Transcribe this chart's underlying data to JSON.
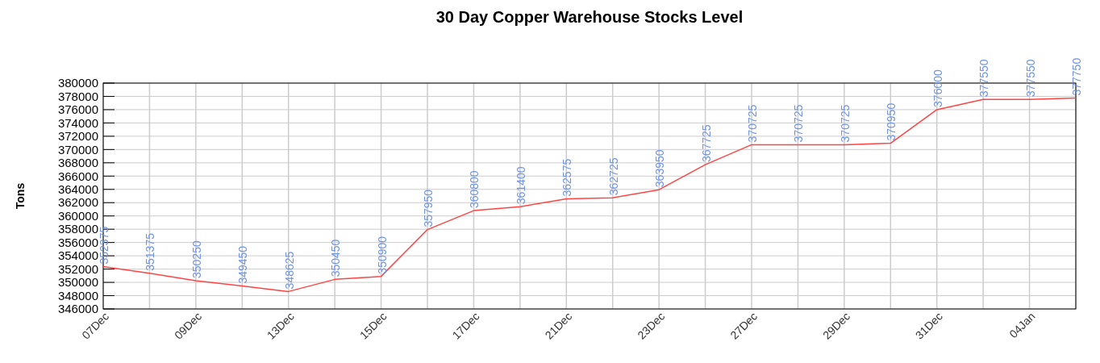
{
  "chart_data": {
    "type": "line",
    "title": "30 Day Copper Warehouse Stocks Level",
    "ylabel": "Tons",
    "categories": [
      "07Dec",
      null,
      "09Dec",
      null,
      "13Dec",
      null,
      "15Dec",
      null,
      "17Dec",
      null,
      "21Dec",
      null,
      "23Dec",
      null,
      "27Dec",
      null,
      "29Dec",
      null,
      "31Dec",
      null,
      "04Jan",
      null
    ],
    "series": [
      {
        "color": "#ff4444",
        "values": [
          352375,
          351375,
          350250,
          349450,
          348625,
          350450,
          350900,
          357950,
          360800,
          361400,
          362575,
          362725,
          363950,
          367725,
          370725,
          370725,
          370725,
          370950,
          376000,
          377550,
          377550,
          377750
        ]
      }
    ],
    "ylim": [
      346000,
      380000
    ],
    "yticks": [
      346000,
      348000,
      350000,
      352000,
      354000,
      356000,
      358000,
      360000,
      362000,
      364000,
      366000,
      368000,
      370000,
      372000,
      374000,
      376000,
      378000,
      380000
    ],
    "grid": true,
    "data_labels": true,
    "marker": "none",
    "line_style": "solid"
  }
}
